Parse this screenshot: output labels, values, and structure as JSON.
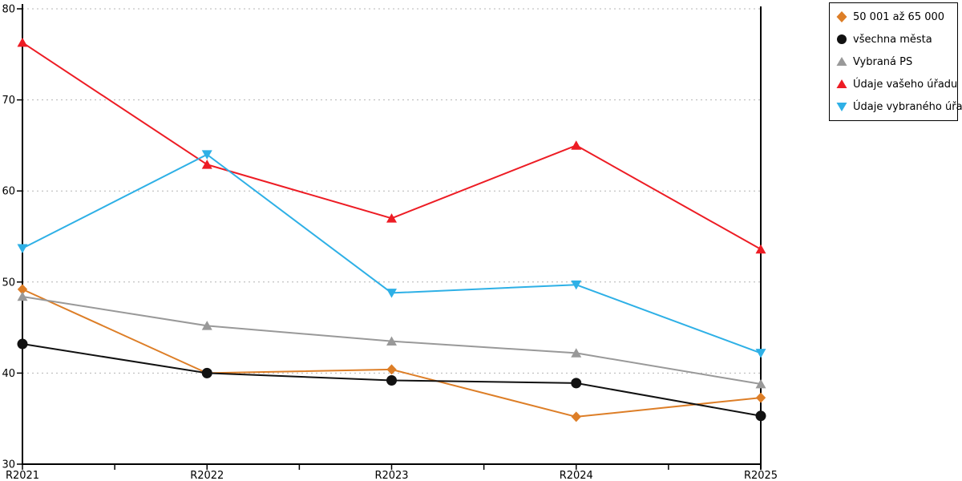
{
  "chart_data": {
    "type": "line",
    "title": "",
    "xlabel": "",
    "ylabel": "",
    "x_categories": [
      "R2021",
      "R2022",
      "R2023",
      "R2024",
      "R2025"
    ],
    "y_ticks": [
      30,
      40,
      50,
      60,
      70,
      80
    ],
    "ylim": [
      30,
      80
    ],
    "grid": "horizontal-dotted",
    "legend_position": "outside-top-right",
    "series": [
      {
        "name": "50 001 až 65 000",
        "marker": "diamond",
        "color": "#DD7E27",
        "values": [
          49.2,
          40.0,
          40.4,
          35.2,
          37.3
        ]
      },
      {
        "name": "všechna města",
        "marker": "circle",
        "color": "#111111",
        "values": [
          43.2,
          40.0,
          39.2,
          38.9,
          35.3
        ]
      },
      {
        "name": "Vybraná PS",
        "marker": "triangle-up",
        "color": "#999999",
        "values": [
          48.4,
          45.2,
          43.5,
          42.2,
          38.8
        ]
      },
      {
        "name": "Údaje vašeho úřadu",
        "marker": "triangle-up",
        "color": "#ED1C24",
        "values": [
          76.3,
          62.9,
          57.0,
          65.0,
          53.6
        ]
      },
      {
        "name": "Údaje vybraného úřadu",
        "marker": "triangle-down",
        "color": "#2EB0E6",
        "values": [
          53.7,
          64.0,
          48.8,
          49.7,
          42.2
        ]
      }
    ]
  },
  "colors": {
    "axis": "#000000",
    "gridline": "#b4b4b4",
    "background": "#ffffff",
    "text": "#000000"
  }
}
